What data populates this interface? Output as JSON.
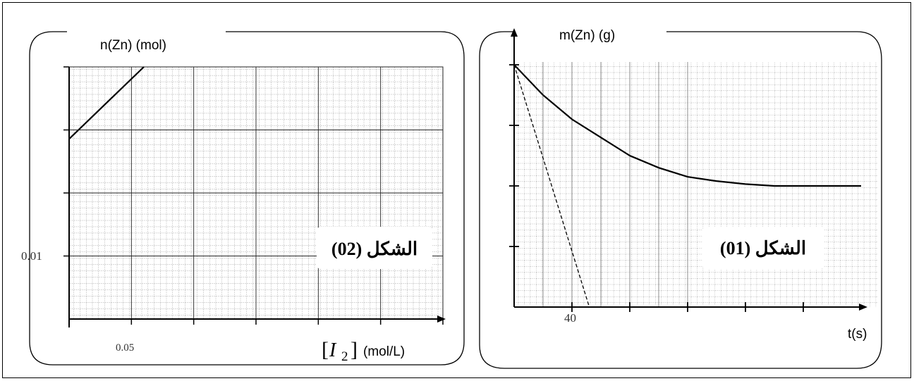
{
  "chart_data": [
    {
      "type": "line",
      "ylabel": "n(Zn) (mol)",
      "xlabel_var": "I",
      "xlabel_sub": "2",
      "xlabel_unit": "(mol/L)",
      "x_tick_label": "0.05",
      "y_tick_label": "0.01",
      "badge": "الشكل (02)",
      "xlim": [
        0.025,
        0.2
      ],
      "ylim": [
        0,
        0.0175
      ],
      "series": [
        {
          "x": [
            0.025,
            0.06
          ],
          "y": [
            0.0125,
            0.0175
          ]
        }
      ]
    },
    {
      "type": "line",
      "ylabel": "m(Zn) (g)",
      "xlabel": "t(s)",
      "x_tick_label": "40",
      "badge": "الشكل (01)",
      "xlim": [
        0,
        240
      ],
      "series": [
        {
          "style": "solid",
          "x": [
            0,
            20,
            40,
            60,
            80,
            100,
            120,
            140,
            160,
            180,
            200,
            240
          ],
          "y": [
            4.0,
            3.5,
            3.1,
            2.8,
            2.5,
            2.3,
            2.15,
            2.08,
            2.03,
            2.0,
            2.0,
            2.0
          ]
        },
        {
          "style": "dashed",
          "x": [
            0,
            52
          ],
          "y": [
            4.0,
            0
          ]
        }
      ]
    }
  ]
}
